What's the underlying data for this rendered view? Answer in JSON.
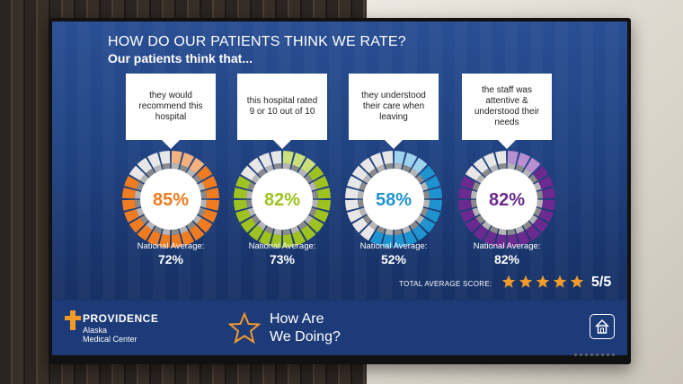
{
  "screen": {
    "title": "HOW DO OUR PATIENTS THINK WE RATE?",
    "subtitle": "Our patients think that..."
  },
  "cards": [
    {
      "text": "they would recommend this hospital",
      "percent": "85%",
      "fraction": 0.85,
      "color": "#f07c21",
      "light": "#f6b27e",
      "national_label": "National Average:",
      "national_value": "72%"
    },
    {
      "text": "this hospital rated 9 or 10 out of 10",
      "percent": "82%",
      "fraction": 0.82,
      "color": "#9ec21f",
      "light": "#cbe07c",
      "national_label": "National Average:",
      "national_value": "73%"
    },
    {
      "text": "they understood their care when leaving",
      "percent": "58%",
      "fraction": 0.58,
      "color": "#1f93cf",
      "light": "#9fd2ec",
      "national_label": "National Average:",
      "national_value": "52%"
    },
    {
      "text": "the staff was attentive & understood their needs",
      "percent": "82%",
      "fraction": 0.82,
      "color": "#6a2a8f",
      "light": "#b88fd0",
      "national_label": "National Average:",
      "national_value": "82%"
    }
  ],
  "total": {
    "label": "TOTAL AVERAGE SCORE:",
    "stars": 5,
    "score": "5/5",
    "star_color": "#f39a2b"
  },
  "footer": {
    "brand": "PROVIDENCE",
    "sub1": "Alaska",
    "sub2": "Medical Center",
    "line1": "How Are",
    "line2": "We Doing?",
    "accent": "#f39a2b"
  }
}
